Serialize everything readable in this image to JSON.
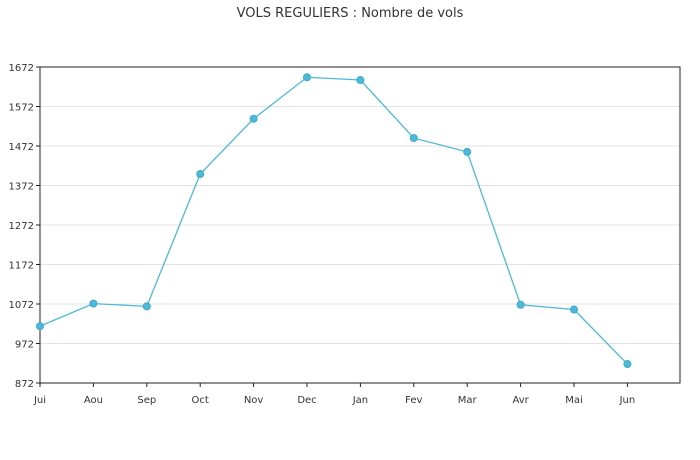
{
  "chart_data": {
    "type": "line",
    "title": "VOLS REGULIERS : Nombre de vols",
    "xlabel": "",
    "ylabel": "",
    "categories": [
      "Jui",
      "Aou",
      "Sep",
      "Oct",
      "Nov",
      "Dec",
      "Jan",
      "Fev",
      "Mar",
      "Avr",
      "Mai",
      "Jun"
    ],
    "series": [
      {
        "values": [
          1016,
          1073,
          1066,
          1401,
          1541,
          1646,
          1639,
          1492,
          1457,
          1070,
          1058,
          920
        ],
        "color": "#4db8d8"
      }
    ],
    "ylim": [
      872,
      1672
    ],
    "yticks": [
      872,
      972,
      1072,
      1172,
      1272,
      1372,
      1472,
      1572,
      1672
    ],
    "grid": true,
    "legend": "none"
  }
}
